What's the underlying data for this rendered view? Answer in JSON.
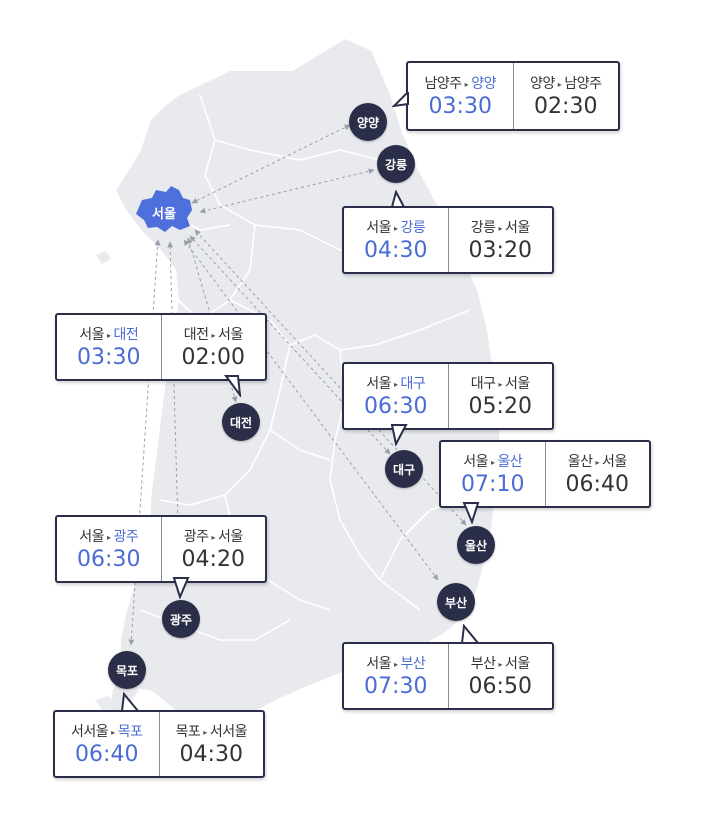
{
  "colors": {
    "map_fill": "#e9eaee",
    "map_border": "#ffffff",
    "seoul_fill": "#4f6fdc",
    "marker_fill": "#2b2e48",
    "highlight_text": "#4a6cd4",
    "route_line": "#9aa0aa"
  },
  "arrow_glyph": "▸",
  "seoul": {
    "label": "서울"
  },
  "cities": [
    {
      "id": "yangyang",
      "name": "양양"
    },
    {
      "id": "gangneung",
      "name": "강릉"
    },
    {
      "id": "daejeon",
      "name": "대전"
    },
    {
      "id": "daegu",
      "name": "대구"
    },
    {
      "id": "ulsan",
      "name": "울산"
    },
    {
      "id": "busan",
      "name": "부산"
    },
    {
      "id": "gwangju",
      "name": "광주"
    },
    {
      "id": "mokpo",
      "name": "목포"
    }
  ],
  "boxes": [
    {
      "id": "yangyang",
      "out_from": "남양주",
      "out_to": "양양",
      "out_time": "03:30",
      "in_from": "양양",
      "in_to": "남양주",
      "in_time": "02:30"
    },
    {
      "id": "gangneung",
      "out_from": "서울",
      "out_to": "강릉",
      "out_time": "04:30",
      "in_from": "강릉",
      "in_to": "서울",
      "in_time": "03:20"
    },
    {
      "id": "daejeon",
      "out_from": "서울",
      "out_to": "대전",
      "out_time": "03:30",
      "in_from": "대전",
      "in_to": "서울",
      "in_time": "02:00"
    },
    {
      "id": "daegu",
      "out_from": "서울",
      "out_to": "대구",
      "out_time": "06:30",
      "in_from": "대구",
      "in_to": "서울",
      "in_time": "05:20"
    },
    {
      "id": "ulsan",
      "out_from": "서울",
      "out_to": "울산",
      "out_time": "07:10",
      "in_from": "울산",
      "in_to": "서울",
      "in_time": "06:40"
    },
    {
      "id": "gwangju",
      "out_from": "서울",
      "out_to": "광주",
      "out_time": "06:30",
      "in_from": "광주",
      "in_to": "서울",
      "in_time": "04:20"
    },
    {
      "id": "busan",
      "out_from": "서울",
      "out_to": "부산",
      "out_time": "07:30",
      "in_from": "부산",
      "in_to": "서울",
      "in_time": "06:50"
    },
    {
      "id": "mokpo",
      "out_from": "서서울",
      "out_to": "목포",
      "out_time": "06:40",
      "in_from": "목포",
      "in_to": "서서울",
      "in_time": "04:30"
    }
  ]
}
